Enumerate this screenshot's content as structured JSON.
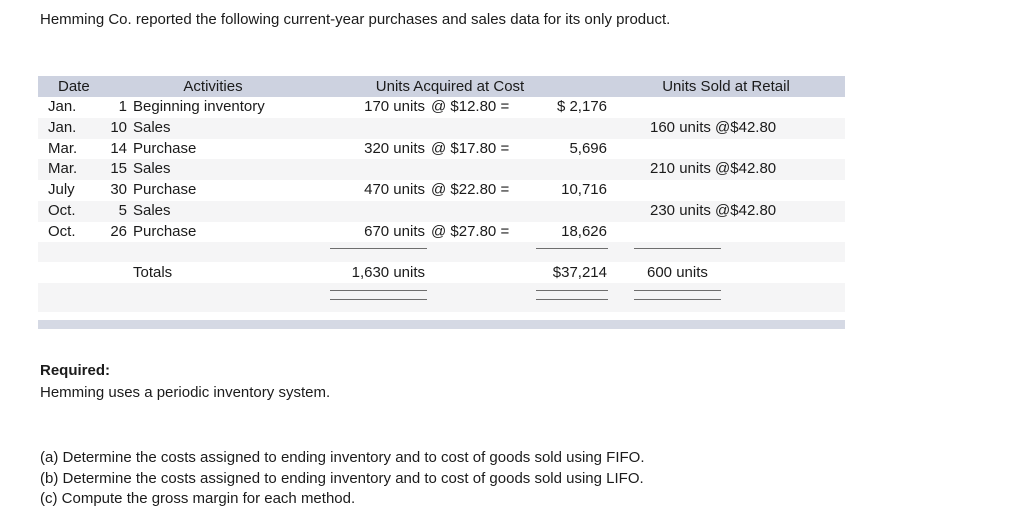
{
  "title": "Hemming Co. reported the following current-year purchases and sales data for its only product.",
  "table": {
    "headers": {
      "date": "Date",
      "activities": "Activities",
      "acquired": "Units Acquired at Cost",
      "sold": "Units Sold at Retail"
    },
    "rows": [
      {
        "month": "Jan.",
        "day": "1",
        "activity": "Beginning inventory",
        "units_acquired": "170 units",
        "cost_expr": "@ $12.80 =",
        "cost_amount": "$ 2,176",
        "units_sold": ""
      },
      {
        "month": "Jan.",
        "day": "10",
        "activity": "Sales",
        "units_acquired": "",
        "cost_expr": "",
        "cost_amount": "",
        "units_sold": "160 units @$42.80"
      },
      {
        "month": "Mar.",
        "day": "14",
        "activity": "Purchase",
        "units_acquired": "320 units",
        "cost_expr": "@ $17.80 =",
        "cost_amount": "5,696",
        "units_sold": ""
      },
      {
        "month": "Mar.",
        "day": "15",
        "activity": "Sales",
        "units_acquired": "",
        "cost_expr": "",
        "cost_amount": "",
        "units_sold": "210 units @$42.80"
      },
      {
        "month": "July",
        "day": "30",
        "activity": "Purchase",
        "units_acquired": "470 units",
        "cost_expr": "@ $22.80 =",
        "cost_amount": "10,716",
        "units_sold": ""
      },
      {
        "month": "Oct.",
        "day": "5",
        "activity": "Sales",
        "units_acquired": "",
        "cost_expr": "",
        "cost_amount": "",
        "units_sold": "230 units @$42.80"
      },
      {
        "month": "Oct.",
        "day": "26",
        "activity": "Purchase",
        "units_acquired": "670 units",
        "cost_expr": "@ $27.80 =",
        "cost_amount": "18,626",
        "units_sold": ""
      }
    ],
    "totals": {
      "label": "Totals",
      "units": "1,630 units",
      "cost": "$37,214",
      "sold": "600 units"
    }
  },
  "required": {
    "heading": "Required:",
    "text": "Hemming uses a periodic inventory system."
  },
  "tasks": [
    "(a) Determine the costs assigned to ending inventory and to cost of goods sold using FIFO.",
    "(b) Determine the costs assigned to ending inventory and to cost of goods sold using LIFO.",
    "(c) Compute the gross margin for each method."
  ],
  "colors": {
    "header_band": "#cdd2e0",
    "footer_band": "#d5d9e4",
    "alt_row": "#f5f5f6",
    "rule_line": "#6e6e6e"
  }
}
